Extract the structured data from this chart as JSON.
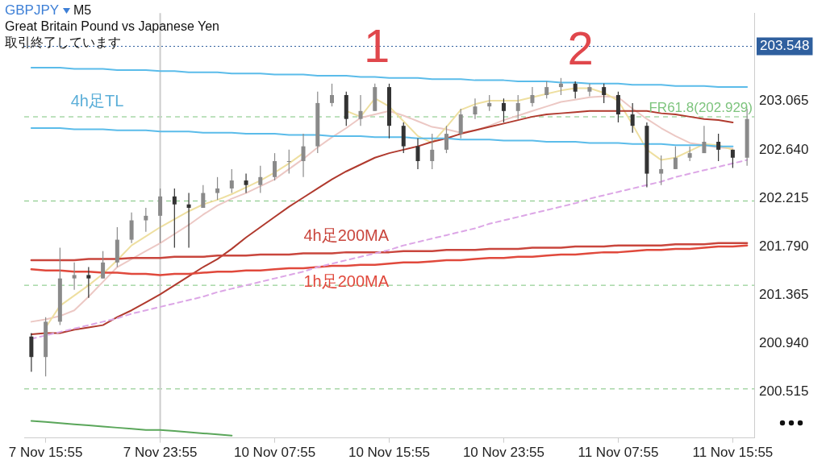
{
  "chart_data": {
    "type": "candlestick",
    "title": "GBPJPY",
    "subtitle": "Great Britain Pound vs Japanese Yen",
    "annotations": [
      "M5",
      "取引終了しています",
      "1",
      "2",
      "4h足TL"
    ],
    "colors": [
      "#333333",
      "#8a8a8a",
      "#8a8a8a",
      "#8a8a8a",
      "#333333",
      "#8a8a8a",
      "#8a8a8a",
      "#8a8a8a",
      "#8a8a8a",
      "#8a8a8a",
      "#333333",
      "#333333",
      "#8a8a8a",
      "#8a8a8a",
      "#8a8a8a",
      "#333333",
      "#8a8a8a",
      "#8a8a8a",
      "#8a8a8a",
      "#8a8a8a",
      "#8a8a8a",
      "#8a8a8a",
      "#333333",
      "#8a8a8a",
      "#8a8a8a",
      "#333333",
      "#333333",
      "#333333",
      "#8a8a8a",
      "#8a8a8a",
      "#8a8a8a",
      "#8a8a8a",
      "#8a8a8a",
      "#333333",
      "#8a8a8a",
      "#8a8a8a",
      "#8a8a8a",
      "#8a8a8a",
      "#333333",
      "#8a8a8a",
      "#333333",
      "#333333",
      "#333333",
      "#333333",
      "#8a8a8a",
      "#8a8a8a",
      "#8a8a8a",
      "#8a8a8a",
      "#333333",
      "#333333",
      "#8a8a8a"
    ],
    "categories": [
      null,
      "7 Nov 15:55",
      null,
      null,
      null,
      null,
      null,
      null,
      null,
      "7 Nov 23:55",
      null,
      null,
      null,
      null,
      null,
      null,
      null,
      "10 Nov 07:55",
      null,
      null,
      null,
      null,
      null,
      null,
      null,
      "10 Nov 15:55",
      null,
      null,
      null,
      null,
      null,
      null,
      null,
      "10 Nov 23:55",
      null,
      null,
      null,
      null,
      null,
      null,
      null,
      "11 Nov 07:55",
      null,
      null,
      null,
      null,
      null,
      null,
      null,
      "11 Nov 15:55",
      null
    ],
    "ohlc": [
      [
        201.0,
        201.03,
        200.69,
        200.82
      ],
      [
        200.82,
        201.17,
        200.65,
        201.13
      ],
      [
        201.13,
        201.78,
        201.1,
        201.51
      ],
      [
        201.51,
        201.65,
        201.41,
        201.54
      ],
      [
        201.54,
        201.61,
        201.34,
        201.51
      ],
      [
        201.51,
        201.75,
        201.51,
        201.65
      ],
      [
        201.65,
        201.96,
        201.61,
        201.85
      ],
      [
        201.85,
        202.09,
        201.82,
        202.02
      ],
      [
        202.02,
        202.13,
        201.92,
        202.06
      ],
      [
        202.06,
        202.3,
        201.82,
        202.23
      ],
      [
        202.23,
        202.3,
        201.78,
        202.16
      ],
      [
        202.16,
        202.26,
        201.78,
        202.13
      ],
      [
        202.13,
        202.33,
        202.13,
        202.26
      ],
      [
        202.26,
        202.4,
        202.2,
        202.3
      ],
      [
        202.3,
        202.47,
        202.26,
        202.37
      ],
      [
        202.37,
        202.43,
        202.26,
        202.33
      ],
      [
        202.33,
        202.5,
        202.26,
        202.4
      ],
      [
        202.4,
        202.61,
        202.37,
        202.54
      ],
      [
        202.54,
        202.64,
        202.43,
        202.54
      ],
      [
        202.54,
        202.78,
        202.4,
        202.67
      ],
      [
        202.67,
        203.15,
        202.61,
        203.05
      ],
      [
        203.05,
        203.22,
        203.02,
        203.12
      ],
      [
        203.12,
        203.15,
        202.85,
        202.91
      ],
      [
        202.91,
        203.12,
        202.85,
        202.98
      ],
      [
        202.98,
        203.22,
        202.98,
        203.19
      ],
      [
        203.19,
        203.22,
        202.74,
        202.85
      ],
      [
        202.85,
        202.88,
        202.61,
        202.67
      ],
      [
        202.67,
        202.74,
        202.47,
        202.54
      ],
      [
        202.54,
        202.78,
        202.47,
        202.64
      ],
      [
        202.64,
        202.85,
        202.61,
        202.78
      ],
      [
        202.78,
        203.0,
        202.74,
        202.95
      ],
      [
        202.95,
        203.09,
        202.91,
        203.02
      ],
      [
        203.02,
        203.12,
        202.98,
        203.05
      ],
      [
        203.05,
        203.09,
        202.88,
        202.98
      ],
      [
        202.98,
        203.12,
        202.91,
        203.05
      ],
      [
        203.05,
        203.19,
        203.02,
        203.12
      ],
      [
        203.12,
        203.24,
        203.09,
        203.19
      ],
      [
        203.19,
        203.27,
        203.12,
        203.22
      ],
      [
        203.22,
        203.24,
        203.09,
        203.15
      ],
      [
        203.15,
        203.22,
        203.11,
        203.19
      ],
      [
        203.19,
        203.22,
        203.05,
        203.12
      ],
      [
        203.12,
        203.15,
        202.88,
        202.95
      ],
      [
        202.95,
        203.05,
        202.79,
        202.85
      ],
      [
        202.85,
        202.88,
        202.31,
        202.43
      ],
      [
        202.43,
        202.59,
        202.33,
        202.47
      ],
      [
        202.47,
        202.67,
        202.47,
        202.57
      ],
      [
        202.57,
        202.67,
        202.54,
        202.61
      ],
      [
        202.61,
        202.85,
        202.61,
        202.71
      ],
      [
        202.71,
        202.78,
        202.54,
        202.64
      ],
      [
        202.64,
        202.64,
        202.48,
        202.57
      ],
      [
        202.57,
        203.0,
        202.5,
        202.91
      ]
    ],
    "series": [
      {
        "type": "line",
        "color": "#5bbcea",
        "values": [
          203.36,
          203.36,
          203.36,
          203.35,
          203.35,
          203.35,
          203.34,
          203.34,
          203.34,
          203.33,
          203.33,
          203.32,
          203.32,
          203.32,
          203.31,
          203.31,
          203.31,
          203.3,
          203.3,
          203.3,
          203.29,
          203.29,
          203.29,
          203.28,
          203.28,
          203.27,
          203.27,
          203.27,
          203.26,
          203.26,
          203.26,
          203.25,
          203.25,
          203.25,
          203.24,
          203.24,
          203.24,
          203.23,
          203.23,
          203.22,
          203.22,
          203.22,
          203.21,
          203.21,
          203.21,
          203.2,
          203.2,
          203.2,
          203.19,
          203.19,
          203.19
        ]
      },
      {
        "type": "line",
        "color": "#5bbcea",
        "values": [
          202.83,
          202.83,
          202.83,
          202.82,
          202.82,
          202.82,
          202.81,
          202.81,
          202.81,
          202.8,
          202.8,
          202.8,
          202.79,
          202.79,
          202.79,
          202.78,
          202.78,
          202.78,
          202.77,
          202.77,
          202.77,
          202.76,
          202.76,
          202.76,
          202.75,
          202.75,
          202.75,
          202.74,
          202.74,
          202.74,
          202.73,
          202.73,
          202.73,
          202.72,
          202.72,
          202.72,
          202.71,
          202.71,
          202.71,
          202.7,
          202.7,
          202.7,
          202.69,
          202.69,
          202.69,
          202.68,
          202.68,
          202.68,
          202.67,
          202.67,
          null
        ]
      },
      {
        "type": "line",
        "color": "#dca6e6",
        "line_style": "dashed",
        "values": [
          200.98,
          201.01,
          201.04,
          201.07,
          201.1,
          201.13,
          201.16,
          201.2,
          201.23,
          201.26,
          201.29,
          201.32,
          201.35,
          201.39,
          201.42,
          201.45,
          201.48,
          201.51,
          201.54,
          201.57,
          201.61,
          201.64,
          201.67,
          201.7,
          201.73,
          201.76,
          201.8,
          201.83,
          201.86,
          201.89,
          201.92,
          201.95,
          201.99,
          202.02,
          202.05,
          202.08,
          202.11,
          202.14,
          202.17,
          202.21,
          202.24,
          202.27,
          202.3,
          202.33,
          202.36,
          202.4,
          202.43,
          202.46,
          202.49,
          202.52,
          202.55
        ]
      },
      {
        "type": "line",
        "name": "4h足200MA",
        "color": "#c9463d",
        "values": [
          201.67,
          201.67,
          201.67,
          201.67,
          201.68,
          201.68,
          201.68,
          201.69,
          201.69,
          201.69,
          201.7,
          201.7,
          201.7,
          201.71,
          201.71,
          201.71,
          201.72,
          201.72,
          201.72,
          201.73,
          201.73,
          201.73,
          201.74,
          201.74,
          201.74,
          201.74,
          201.75,
          201.75,
          201.75,
          201.76,
          201.76,
          201.76,
          201.77,
          201.77,
          201.77,
          201.78,
          201.78,
          201.78,
          201.79,
          201.79,
          201.79,
          201.8,
          201.8,
          201.8,
          201.8,
          201.81,
          201.81,
          201.81,
          201.82,
          201.82,
          201.82
        ]
      },
      {
        "type": "line",
        "name": "1h足200MA",
        "color": "#e0493c",
        "values": [
          201.59,
          201.58,
          201.58,
          201.57,
          201.57,
          201.56,
          201.56,
          201.55,
          201.55,
          201.54,
          201.55,
          201.55,
          201.56,
          201.57,
          201.57,
          201.58,
          201.58,
          201.59,
          201.6,
          201.6,
          201.61,
          201.62,
          201.62,
          201.63,
          201.63,
          201.64,
          201.65,
          201.65,
          201.66,
          201.67,
          201.67,
          201.68,
          201.69,
          201.69,
          201.7,
          201.7,
          201.71,
          201.72,
          201.72,
          201.73,
          201.74,
          201.74,
          201.75,
          201.76,
          201.76,
          201.77,
          201.77,
          201.78,
          201.79,
          201.79,
          201.8
        ]
      },
      {
        "type": "line",
        "color": "#b03a2e",
        "values": [
          201.02,
          201.03,
          201.03,
          201.06,
          201.08,
          201.1,
          201.17,
          201.23,
          201.3,
          201.37,
          201.45,
          201.53,
          201.61,
          201.68,
          201.77,
          201.87,
          201.96,
          202.05,
          202.14,
          202.22,
          202.3,
          202.38,
          202.45,
          202.51,
          202.57,
          202.61,
          202.64,
          202.67,
          202.71,
          202.74,
          202.78,
          202.81,
          202.84,
          202.87,
          202.9,
          202.93,
          202.95,
          202.96,
          202.97,
          202.98,
          202.98,
          202.98,
          202.98,
          202.98,
          202.96,
          202.95,
          202.93,
          202.91,
          202.9,
          202.88,
          null
        ]
      },
      {
        "type": "line",
        "color": "#eedfa0",
        "values": [
          null,
          201.08,
          201.27,
          201.36,
          201.45,
          201.55,
          201.67,
          201.8,
          201.88,
          201.96,
          202.03,
          202.1,
          202.16,
          202.2,
          202.25,
          202.31,
          202.37,
          202.44,
          202.52,
          202.61,
          null,
          null,
          202.98,
          202.93,
          203.09,
          203.02,
          202.89,
          202.76,
          202.7,
          202.84,
          202.99,
          203.04,
          203.07,
          203.07,
          203.07,
          203.1,
          203.13,
          203.16,
          203.18,
          203.18,
          203.14,
          203.07,
          202.86,
          202.64,
          202.55,
          202.57,
          202.63,
          202.69,
          202.68,
          202.64,
          null
        ]
      },
      {
        "type": "line",
        "color": "#ecc8c4",
        "values": [
          201.13,
          201.15,
          201.18,
          201.23,
          201.35,
          201.48,
          201.61,
          201.68,
          201.75,
          201.82,
          201.9,
          201.98,
          202.07,
          202.15,
          202.21,
          202.26,
          202.32,
          202.38,
          202.47,
          202.56,
          202.66,
          202.75,
          202.83,
          202.92,
          202.95,
          202.98,
          202.94,
          202.89,
          202.84,
          202.82,
          202.79,
          202.81,
          202.85,
          202.9,
          202.94,
          202.98,
          203.02,
          203.06,
          203.08,
          203.1,
          203.11,
          203.1,
          203.0,
          202.91,
          202.83,
          202.76,
          202.7,
          202.68,
          202.66,
          202.65,
          null
        ]
      },
      {
        "type": "line",
        "color": "#5aa65a",
        "values": [
          200.26,
          200.25,
          200.24,
          200.23,
          200.22,
          200.21,
          200.2,
          200.19,
          200.18,
          200.18,
          200.17,
          200.16,
          200.15,
          200.14,
          200.13,
          null,
          null,
          null,
          null,
          null,
          null,
          null,
          null,
          null,
          null,
          null,
          null,
          null,
          null,
          null,
          null,
          null,
          null,
          null,
          null,
          null,
          null,
          null,
          null,
          null,
          null,
          null,
          null,
          null,
          null,
          null,
          null,
          null,
          null,
          null,
          null
        ]
      }
    ],
    "ylim": [
      200.11,
      203.84
    ],
    "yticks": [
      200.515,
      {
        "value": 200.94,
        "label": "200.940"
      },
      201.365,
      {
        "value": 201.79,
        "label": "201.790"
      },
      202.215,
      {
        "value": 202.64,
        "label": "202.640"
      },
      203.065
    ],
    "ref_lines": [
      {
        "axis": "y",
        "value": 203.548,
        "label": "203.548",
        "color": "#2f5f9e",
        "line_style": "dotted"
      },
      {
        "axis": "y",
        "value": 202.929,
        "label": "FR61.8(202.929)",
        "color": "#7dc47d",
        "line_style": "dashed"
      },
      {
        "axis": "y",
        "value": 202.19,
        "label": null,
        "color": "#7dc47d",
        "line_style": "dashed"
      },
      {
        "axis": "y",
        "value": 201.45,
        "label": null,
        "color": "#7dc47d",
        "line_style": "dashed"
      },
      {
        "axis": "y",
        "value": 200.54,
        "label": null,
        "color": "#7dc47d",
        "line_style": "dashed"
      },
      {
        "axis": "x",
        "value": "7 Nov 23:55",
        "label": null,
        "color": "#cccccc",
        "line_style": "solid"
      }
    ],
    "grid": false,
    "marker": "none"
  }
}
